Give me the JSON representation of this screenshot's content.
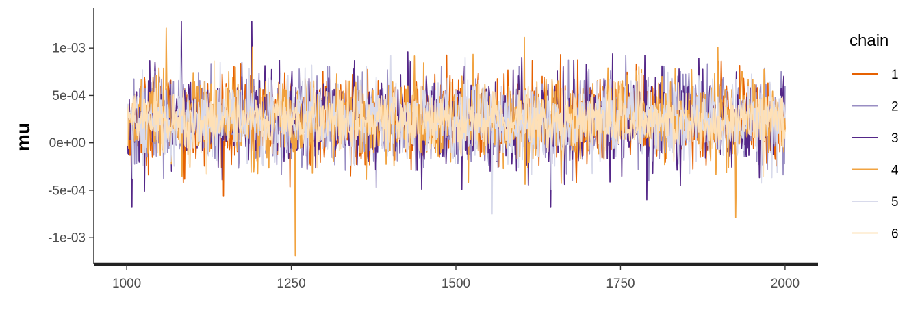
{
  "chart_data": {
    "type": "line",
    "title": "",
    "xlabel": "",
    "ylabel": "mu",
    "xlim": [
      950,
      2050
    ],
    "ylim": [
      -0.00128,
      0.00142
    ],
    "x_ticks": [
      1000,
      1250,
      1500,
      1750,
      2000
    ],
    "x_tick_labels": [
      "1000",
      "1250",
      "1500",
      "1750",
      "2000"
    ],
    "y_ticks": [
      -0.001,
      -0.0005,
      0,
      0.0005,
      0.001
    ],
    "y_tick_labels": [
      "-1e-03",
      "-5e-04",
      "0e+00",
      "5e-04",
      "1e-03"
    ],
    "x_range": [
      1001,
      2000
    ],
    "grid": false,
    "legend": {
      "title": "chain",
      "position": "right",
      "entries": [
        "1",
        "2",
        "3",
        "4",
        "5",
        "6"
      ]
    },
    "series": [
      {
        "name": "1",
        "color": "#e66101",
        "approx_mean": 0.00024,
        "approx_sd": 0.00023,
        "approx_min": -0.00065,
        "approx_max": 0.00112
      },
      {
        "name": "2",
        "color": "#998ec3",
        "approx_mean": 0.00024,
        "approx_sd": 0.00023,
        "approx_min": -0.00055,
        "approx_max": 0.00108
      },
      {
        "name": "3",
        "color": "#542788",
        "approx_mean": 0.00024,
        "approx_sd": 0.00024,
        "approx_min": -0.00068,
        "approx_max": 0.00128
      },
      {
        "name": "4",
        "color": "#f1a340",
        "approx_mean": 0.00024,
        "approx_sd": 0.00023,
        "approx_min": -0.00119,
        "approx_max": 0.00121
      },
      {
        "name": "5",
        "color": "#d8daeb",
        "approx_mean": 0.00024,
        "approx_sd": 0.00022,
        "approx_min": -0.00075,
        "approx_max": 0.00108
      },
      {
        "name": "6",
        "color": "#fee0b6",
        "approx_mean": 0.00024,
        "approx_sd": 0.00016,
        "approx_min": -0.00062,
        "approx_max": 0.00108
      }
    ],
    "notable_points": [
      {
        "series": "4",
        "x": 1256,
        "y": -0.00119
      },
      {
        "series": "3",
        "x": 1190,
        "y": 0.00128
      },
      {
        "series": "4",
        "x": 1060,
        "y": 0.00121
      },
      {
        "series": "4",
        "x": 1925,
        "y": -0.00079
      },
      {
        "series": "5",
        "x": 1555,
        "y": -0.00075
      },
      {
        "series": "3",
        "x": 1008,
        "y": -0.00068
      }
    ]
  }
}
